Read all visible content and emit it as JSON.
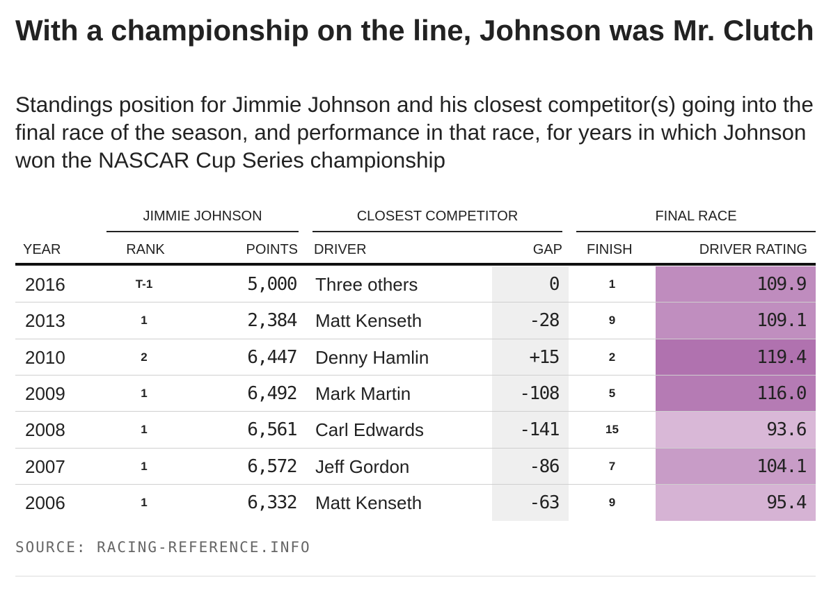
{
  "title": "With a championship on the line, Johnson was Mr. Clutch",
  "subtitle": "Standings position for Jimmie Johnson and his closest competitor(s) going into the final race of the season, and performance in that race, for years in which Johnson won the NASCAR Cup Series championship",
  "groups": {
    "johnson": "JIMMIE JOHNSON",
    "competitor": "CLOSEST COMPETITOR",
    "final_race": "FINAL RACE"
  },
  "columns": {
    "year": "YEAR",
    "rank": "RANK",
    "points": "POINTS",
    "driver": "DRIVER",
    "gap": "GAP",
    "finish": "FINISH",
    "driver_rating": "DRIVER RATING"
  },
  "source": "SOURCE: RACING-REFERENCE.INFO",
  "colors": {
    "rating_scale_low": "#d9b8d7",
    "rating_scale_high": "#b072af",
    "gap_background": "#efefef"
  },
  "chart_data": {
    "type": "table",
    "title": "With a championship on the line, Johnson was Mr. Clutch",
    "columns": [
      "YEAR",
      "RANK",
      "POINTS",
      "DRIVER",
      "GAP",
      "FINISH",
      "DRIVER RATING"
    ],
    "rows": [
      {
        "year": "2016",
        "rank": "T-1",
        "points": "5,000",
        "driver": "Three others",
        "gap": "0",
        "finish": "1",
        "rating": "109.9"
      },
      {
        "year": "2013",
        "rank": "1",
        "points": "2,384",
        "driver": "Matt Kenseth",
        "gap": "-28",
        "finish": "9",
        "rating": "109.1"
      },
      {
        "year": "2010",
        "rank": "2",
        "points": "6,447",
        "driver": "Denny Hamlin",
        "gap": "+15",
        "finish": "2",
        "rating": "119.4"
      },
      {
        "year": "2009",
        "rank": "1",
        "points": "6,492",
        "driver": "Mark Martin",
        "gap": "-108",
        "finish": "5",
        "rating": "116.0"
      },
      {
        "year": "2008",
        "rank": "1",
        "points": "6,561",
        "driver": "Carl Edwards",
        "gap": "-141",
        "finish": "15",
        "rating": "93.6"
      },
      {
        "year": "2007",
        "rank": "1",
        "points": "6,572",
        "driver": "Jeff Gordon",
        "gap": "-86",
        "finish": "7",
        "rating": "104.1"
      },
      {
        "year": "2006",
        "rank": "1",
        "points": "6,332",
        "driver": "Matt Kenseth",
        "gap": "-63",
        "finish": "9",
        "rating": "95.4"
      }
    ]
  }
}
